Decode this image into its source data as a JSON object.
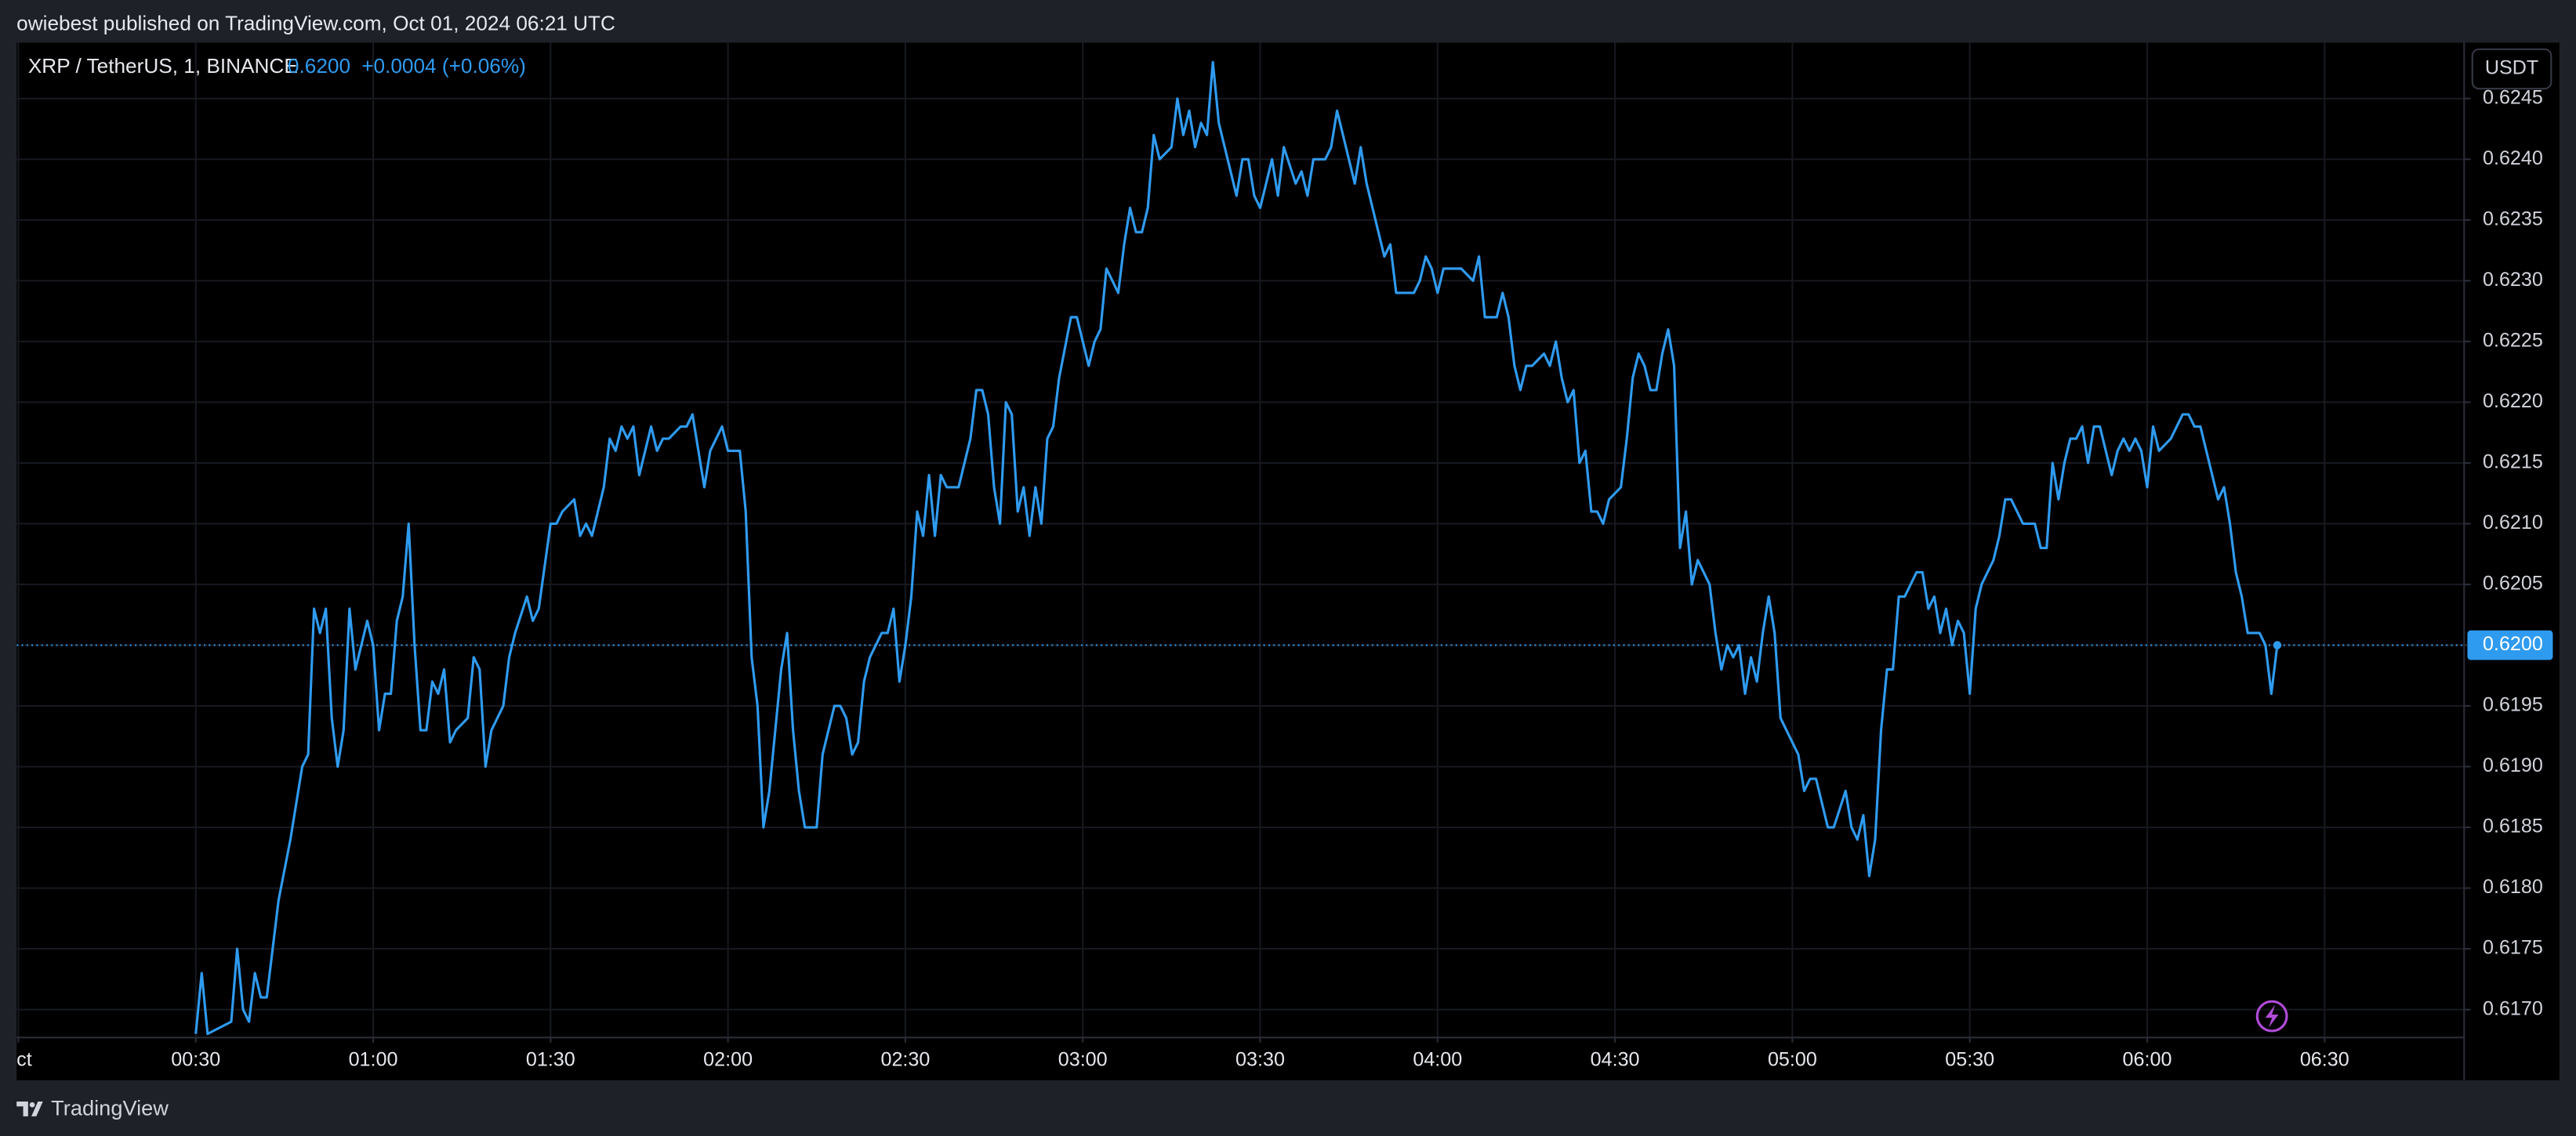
{
  "published": "owiebest published on TradingView.com, Oct 01, 2024 06:21 UTC",
  "currency": "USDT",
  "brand": "TradingView",
  "chart_data": {
    "type": "line",
    "title": "XRP / TetherUS, 1, BINANCE",
    "last_label": "0.6200",
    "change": "+0.0004 (+0.06%)",
    "color": "#2f9bf0",
    "grid": true,
    "x": [
      30,
      31,
      32,
      36,
      37,
      38,
      39,
      40,
      41,
      42,
      44,
      46,
      48,
      49,
      50,
      51,
      52,
      53,
      54,
      55,
      56,
      57,
      59,
      60,
      61,
      62,
      63,
      64,
      65,
      66,
      67,
      68,
      69,
      70,
      71,
      72,
      73,
      74,
      76,
      77,
      78,
      79,
      80,
      82,
      83,
      84,
      86,
      87,
      88,
      90,
      91,
      92,
      94,
      95,
      96,
      97,
      99,
      100,
      101,
      102,
      103,
      104,
      105,
      107,
      108,
      109,
      110,
      112,
      113,
      114,
      116,
      117,
      119,
      120,
      122,
      123,
      124,
      125,
      126,
      127,
      129,
      130,
      131,
      132,
      133,
      135,
      136,
      138,
      139,
      140,
      141,
      142,
      143,
      144,
      146,
      147,
      148,
      149,
      150,
      151,
      152,
      153,
      154,
      155,
      156,
      157,
      159,
      160,
      161,
      162,
      163,
      164,
      165,
      166,
      167,
      168,
      169,
      170,
      171,
      172,
      173,
      174,
      175,
      176,
      178,
      179,
      180,
      181,
      182,
      183,
      184,
      186,
      187,
      188,
      189,
      190,
      191,
      192,
      193,
      195,
      196,
      197,
      198,
      199,
      200,
      201,
      202,
      203,
      204,
      206,
      207,
      208,
      209,
      210,
      211,
      212,
      213,
      214,
      216,
      217,
      218,
      219,
      221,
      222,
      223,
      224,
      226,
      227,
      228,
      230,
      231,
      232,
      233,
      234,
      236,
      237,
      238,
      239,
      240,
      241,
      243,
      244,
      246,
      247,
      248,
      250,
      251,
      252,
      253,
      254,
      255,
      256,
      258,
      259,
      260,
      261,
      262,
      263,
      264,
      265,
      266,
      267,
      268,
      269,
      271,
      272,
      273,
      274,
      275,
      276,
      277,
      278,
      279,
      280,
      281,
      282,
      283,
      284,
      286,
      287,
      288,
      289,
      290,
      291,
      292,
      293,
      294,
      295,
      296,
      297,
      298,
      299,
      301,
      302,
      303,
      304,
      305,
      306,
      307,
      309,
      310,
      311,
      312,
      313,
      314,
      315,
      316,
      317,
      318,
      319,
      321,
      322,
      323,
      324,
      325,
      326,
      327,
      328,
      329,
      330,
      331,
      332,
      334,
      335,
      336,
      337,
      338,
      339,
      341,
      342,
      343,
      344,
      345,
      346,
      347,
      348,
      349,
      350,
      351,
      352,
      354,
      355,
      356,
      357,
      358,
      359,
      360,
      361,
      362,
      364,
      365,
      366,
      367,
      368,
      369,
      371,
      372,
      373,
      374,
      375,
      376,
      377,
      378,
      379,
      380,
      381,
      382
    ],
    "values": [
      0.6168,
      0.6173,
      0.6168,
      0.6169,
      0.6175,
      0.617,
      0.6169,
      0.6173,
      0.6171,
      0.6171,
      0.6179,
      0.6184,
      0.619,
      0.6191,
      0.6203,
      0.6201,
      0.6203,
      0.6194,
      0.619,
      0.6193,
      0.6203,
      0.6198,
      0.6202,
      0.62,
      0.6193,
      0.6196,
      0.6196,
      0.6202,
      0.6204,
      0.621,
      0.62,
      0.6193,
      0.6193,
      0.6197,
      0.6196,
      0.6198,
      0.6192,
      0.6193,
      0.6194,
      0.6199,
      0.6198,
      0.619,
      0.6193,
      0.6195,
      0.6199,
      0.6201,
      0.6204,
      0.6202,
      0.6203,
      0.621,
      0.621,
      0.6211,
      0.6212,
      0.6209,
      0.621,
      0.6209,
      0.6213,
      0.6217,
      0.6216,
      0.6218,
      0.6217,
      0.6218,
      0.6214,
      0.6218,
      0.6216,
      0.6217,
      0.6217,
      0.6218,
      0.6218,
      0.6219,
      0.6213,
      0.6216,
      0.6218,
      0.6216,
      0.6216,
      0.6211,
      0.6199,
      0.6195,
      0.6185,
      0.6188,
      0.6198,
      0.6201,
      0.6193,
      0.6188,
      0.6185,
      0.6185,
      0.6191,
      0.6195,
      0.6195,
      0.6194,
      0.6191,
      0.6192,
      0.6197,
      0.6199,
      0.6201,
      0.6201,
      0.6203,
      0.6197,
      0.62,
      0.6204,
      0.6211,
      0.6209,
      0.6214,
      0.6209,
      0.6214,
      0.6213,
      0.6213,
      0.6215,
      0.6217,
      0.6221,
      0.6221,
      0.6219,
      0.6213,
      0.621,
      0.622,
      0.6219,
      0.6211,
      0.6213,
      0.6209,
      0.6213,
      0.621,
      0.6217,
      0.6218,
      0.6222,
      0.6227,
      0.6227,
      0.6225,
      0.6223,
      0.6225,
      0.6226,
      0.6231,
      0.6229,
      0.6233,
      0.6236,
      0.6234,
      0.6234,
      0.6236,
      0.6242,
      0.624,
      0.6241,
      0.6245,
      0.6242,
      0.6244,
      0.6241,
      0.6243,
      0.6242,
      0.6248,
      0.6243,
      0.6241,
      0.6237,
      0.624,
      0.624,
      0.6237,
      0.6236,
      0.6238,
      0.624,
      0.6237,
      0.6241,
      0.6238,
      0.6239,
      0.6237,
      0.624,
      0.624,
      0.6241,
      0.6244,
      0.6242,
      0.6238,
      0.6241,
      0.6238,
      0.6234,
      0.6232,
      0.6233,
      0.6229,
      0.6229,
      0.6229,
      0.623,
      0.6232,
      0.6231,
      0.6229,
      0.6231,
      0.6231,
      0.6231,
      0.623,
      0.6232,
      0.6227,
      0.6227,
      0.6229,
      0.6227,
      0.6223,
      0.6221,
      0.6223,
      0.6223,
      0.6224,
      0.6223,
      0.6225,
      0.6222,
      0.622,
      0.6221,
      0.6215,
      0.6216,
      0.6211,
      0.6211,
      0.621,
      0.6212,
      0.6213,
      0.6217,
      0.6222,
      0.6224,
      0.6223,
      0.6221,
      0.6221,
      0.6224,
      0.6226,
      0.6223,
      0.6208,
      0.6211,
      0.6205,
      0.6207,
      0.6205,
      0.6201,
      0.6198,
      0.62,
      0.6199,
      0.62,
      0.6196,
      0.6199,
      0.6197,
      0.6201,
      0.6204,
      0.6201,
      0.6194,
      0.6193,
      0.6191,
      0.6188,
      0.6189,
      0.6189,
      0.6187,
      0.6185,
      0.6185,
      0.6188,
      0.6185,
      0.6184,
      0.6186,
      0.6181,
      0.6184,
      0.6193,
      0.6198,
      0.6198,
      0.6204,
      0.6204,
      0.6206,
      0.6206,
      0.6203,
      0.6204,
      0.6201,
      0.6203,
      0.62,
      0.6202,
      0.6201,
      0.6196,
      0.6203,
      0.6205,
      0.6207,
      0.6209,
      0.6212,
      0.6212,
      0.6211,
      0.621,
      0.621,
      0.6208,
      0.6208,
      0.6215,
      0.6212,
      0.6215,
      0.6217,
      0.6217,
      0.6218,
      0.6215,
      0.6218,
      0.6218,
      0.6214,
      0.6216,
      0.6217,
      0.6216,
      0.6217,
      0.6216,
      0.6213,
      0.6218,
      0.6216,
      0.6217,
      0.6218,
      0.6219,
      0.6219,
      0.6218,
      0.6218,
      0.6214,
      0.6212,
      0.6213,
      0.621,
      0.6206,
      0.6204,
      0.6201,
      0.6201,
      0.6201,
      0.62,
      0.6196,
      0.62
    ],
    "xlim": [
      -0.3,
      413.6
    ],
    "ylim": [
      0.61677,
      0.62496
    ],
    "xticks": [
      {
        "value": 0,
        "label": "ct"
      },
      {
        "value": 30,
        "label": "00:30"
      },
      {
        "value": 60,
        "label": "01:00"
      },
      {
        "value": 90,
        "label": "01:30"
      },
      {
        "value": 120,
        "label": "02:00"
      },
      {
        "value": 150,
        "label": "02:30"
      },
      {
        "value": 180,
        "label": "03:00"
      },
      {
        "value": 210,
        "label": "03:30"
      },
      {
        "value": 240,
        "label": "04:00"
      },
      {
        "value": 270,
        "label": "04:30"
      },
      {
        "value": 300,
        "label": "05:00"
      },
      {
        "value": 330,
        "label": "05:30"
      },
      {
        "value": 360,
        "label": "06:00"
      },
      {
        "value": 390,
        "label": "06:30"
      }
    ],
    "yticks": [
      {
        "value": 0.617,
        "label": "0.6170"
      },
      0.6175,
      {
        "value": 0.618,
        "label": "0.6180"
      },
      0.6185,
      {
        "value": 0.619,
        "label": "0.6190"
      },
      0.6195,
      {
        "value": 0.62,
        "label": "0.6200"
      },
      0.6205,
      {
        "value": 0.621,
        "label": "0.6210"
      },
      0.6215,
      {
        "value": 0.622,
        "label": "0.6220"
      },
      0.6225,
      {
        "value": 0.623,
        "label": "0.6230"
      },
      0.6235,
      {
        "value": 0.624,
        "label": "0.6240"
      },
      0.6245
    ]
  }
}
